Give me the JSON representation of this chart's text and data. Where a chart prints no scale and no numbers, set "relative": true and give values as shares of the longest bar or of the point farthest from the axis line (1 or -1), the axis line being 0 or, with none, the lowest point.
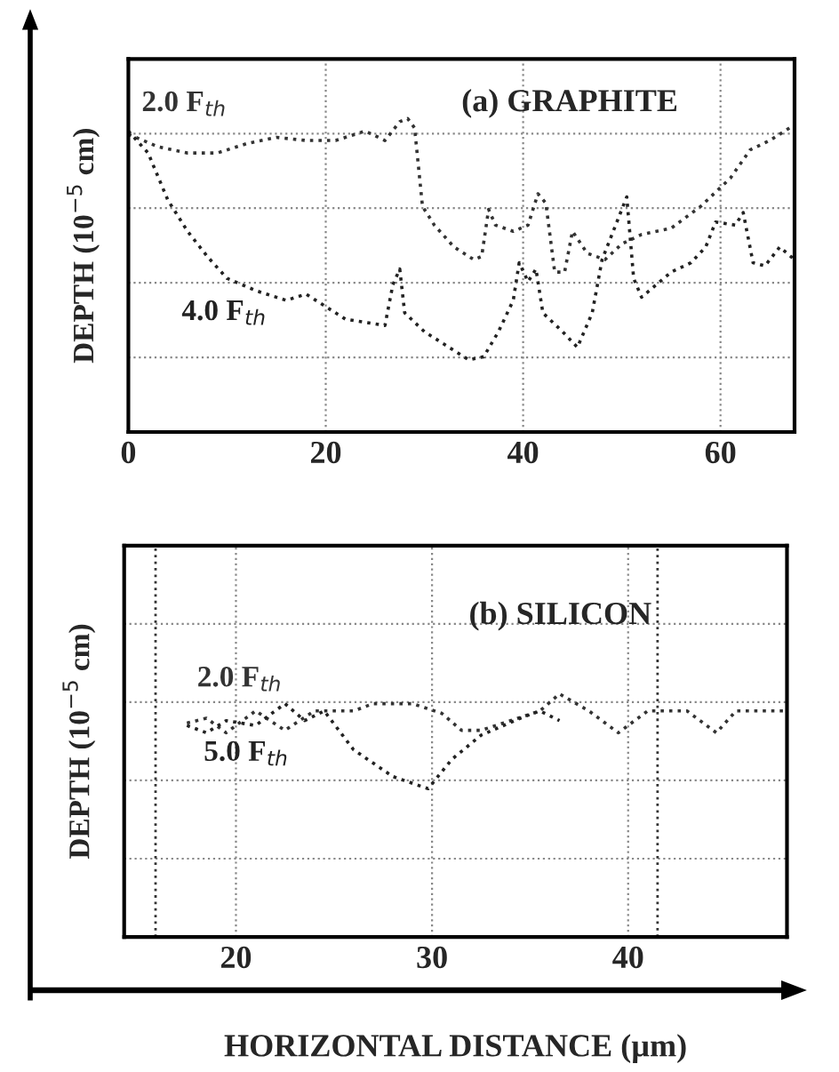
{
  "chart_data": [
    {
      "type": "line",
      "relative": true,
      "ylabel": "DEPTH (10$^{−5}$ cm)",
      "annotations": [
        "(a) GRAPHITE"
      ],
      "xlim": [
        0,
        67.5
      ],
      "xticks": [
        0,
        20,
        40,
        60
      ],
      "grid": true,
      "line_style": "dotted",
      "series": [
        {
          "name": "2.0 F$_{th}$",
          "color": "#333333",
          "x": [
            0,
            3,
            6,
            9,
            12,
            15,
            18,
            21,
            24,
            26,
            27.5,
            28.3,
            29,
            29.8,
            31,
            33,
            35,
            35.8,
            36.5,
            37.2,
            39,
            40.5,
            41.5,
            42.3,
            43.2,
            44.2,
            45,
            46.5,
            48.3,
            50,
            52,
            55,
            58,
            61,
            63,
            65,
            67
          ],
          "values": [
            0.95,
            0.91,
            0.89,
            0.89,
            0.92,
            0.94,
            0.93,
            0.93,
            0.96,
            0.93,
            0.99,
            1.0,
            0.97,
            0.72,
            0.66,
            0.59,
            0.55,
            0.56,
            0.71,
            0.66,
            0.64,
            0.66,
            0.76,
            0.73,
            0.51,
            0.51,
            0.64,
            0.57,
            0.55,
            0.6,
            0.63,
            0.65,
            0.72,
            0.81,
            0.9,
            0.93,
            0.97
          ]
        },
        {
          "name": "4.0 F$_{th}$",
          "color": "#222222",
          "x": [
            0,
            2,
            4,
            6,
            8,
            10,
            13,
            16,
            18,
            20,
            22,
            24,
            26,
            26.8,
            27.5,
            28,
            30,
            32,
            34.5,
            36,
            37.5,
            39,
            39.6,
            40.5,
            41.3,
            42,
            44,
            45.5,
            47,
            48,
            49,
            50.5,
            51.2,
            52,
            53.5,
            55,
            57,
            58.5,
            59.5,
            61.5,
            62.3,
            63.3,
            64.5,
            66,
            67.5
          ],
          "values": [
            0.96,
            0.89,
            0.74,
            0.64,
            0.56,
            0.49,
            0.45,
            0.42,
            0.44,
            0.4,
            0.36,
            0.35,
            0.34,
            0.47,
            0.52,
            0.38,
            0.32,
            0.28,
            0.23,
            0.24,
            0.32,
            0.42,
            0.54,
            0.48,
            0.52,
            0.38,
            0.32,
            0.27,
            0.38,
            0.55,
            0.63,
            0.75,
            0.49,
            0.43,
            0.47,
            0.51,
            0.54,
            0.59,
            0.67,
            0.66,
            0.7,
            0.54,
            0.53,
            0.59,
            0.55
          ]
        }
      ]
    },
    {
      "type": "line",
      "relative": true,
      "ylabel": "DEPTH (10$^{−5}$ cm)",
      "xlabel": "HORIZONTAL DISTANCE (µm)",
      "annotations": [
        "(b) SILICON"
      ],
      "xlim": [
        14.3,
        48.1
      ],
      "xticks": [
        20,
        30,
        40
      ],
      "grid": true,
      "line_style": "dotted",
      "ref_lines": [
        {
          "axis": "x",
          "value": 15.9,
          "color": "#333333",
          "line_style": "dotted"
        },
        {
          "axis": "x",
          "value": 41.5,
          "color": "#333333",
          "line_style": "dotted"
        }
      ],
      "series": [
        {
          "name": "2.0 F$_{th}$",
          "color": "#333333",
          "x": [
            17.5,
            18.5,
            19.5,
            21,
            22.5,
            24,
            26,
            27,
            29,
            30.5,
            31.5,
            32.5,
            34,
            35.5,
            36.5,
            38,
            39.5,
            41,
            43,
            44.5,
            45.5,
            48
          ],
          "values": [
            0.88,
            0.9,
            0.84,
            0.93,
            0.85,
            0.93,
            0.93,
            0.96,
            0.96,
            0.92,
            0.85,
            0.85,
            0.89,
            0.93,
            1.0,
            0.93,
            0.84,
            0.93,
            0.93,
            0.84,
            0.93,
            0.93
          ]
        },
        {
          "name": "5.0 F$_{th}$",
          "color": "#222222",
          "x": [
            17.5,
            18.5,
            19.5,
            21,
            22.5,
            23.5,
            24.5,
            26,
            28,
            29.8,
            31,
            32.5,
            34.5,
            35.5,
            36.5
          ],
          "values": [
            0.87,
            0.84,
            0.89,
            0.87,
            0.96,
            0.89,
            0.93,
            0.77,
            0.66,
            0.61,
            0.73,
            0.83,
            0.9,
            0.93,
            0.89
          ]
        }
      ]
    }
  ]
}
